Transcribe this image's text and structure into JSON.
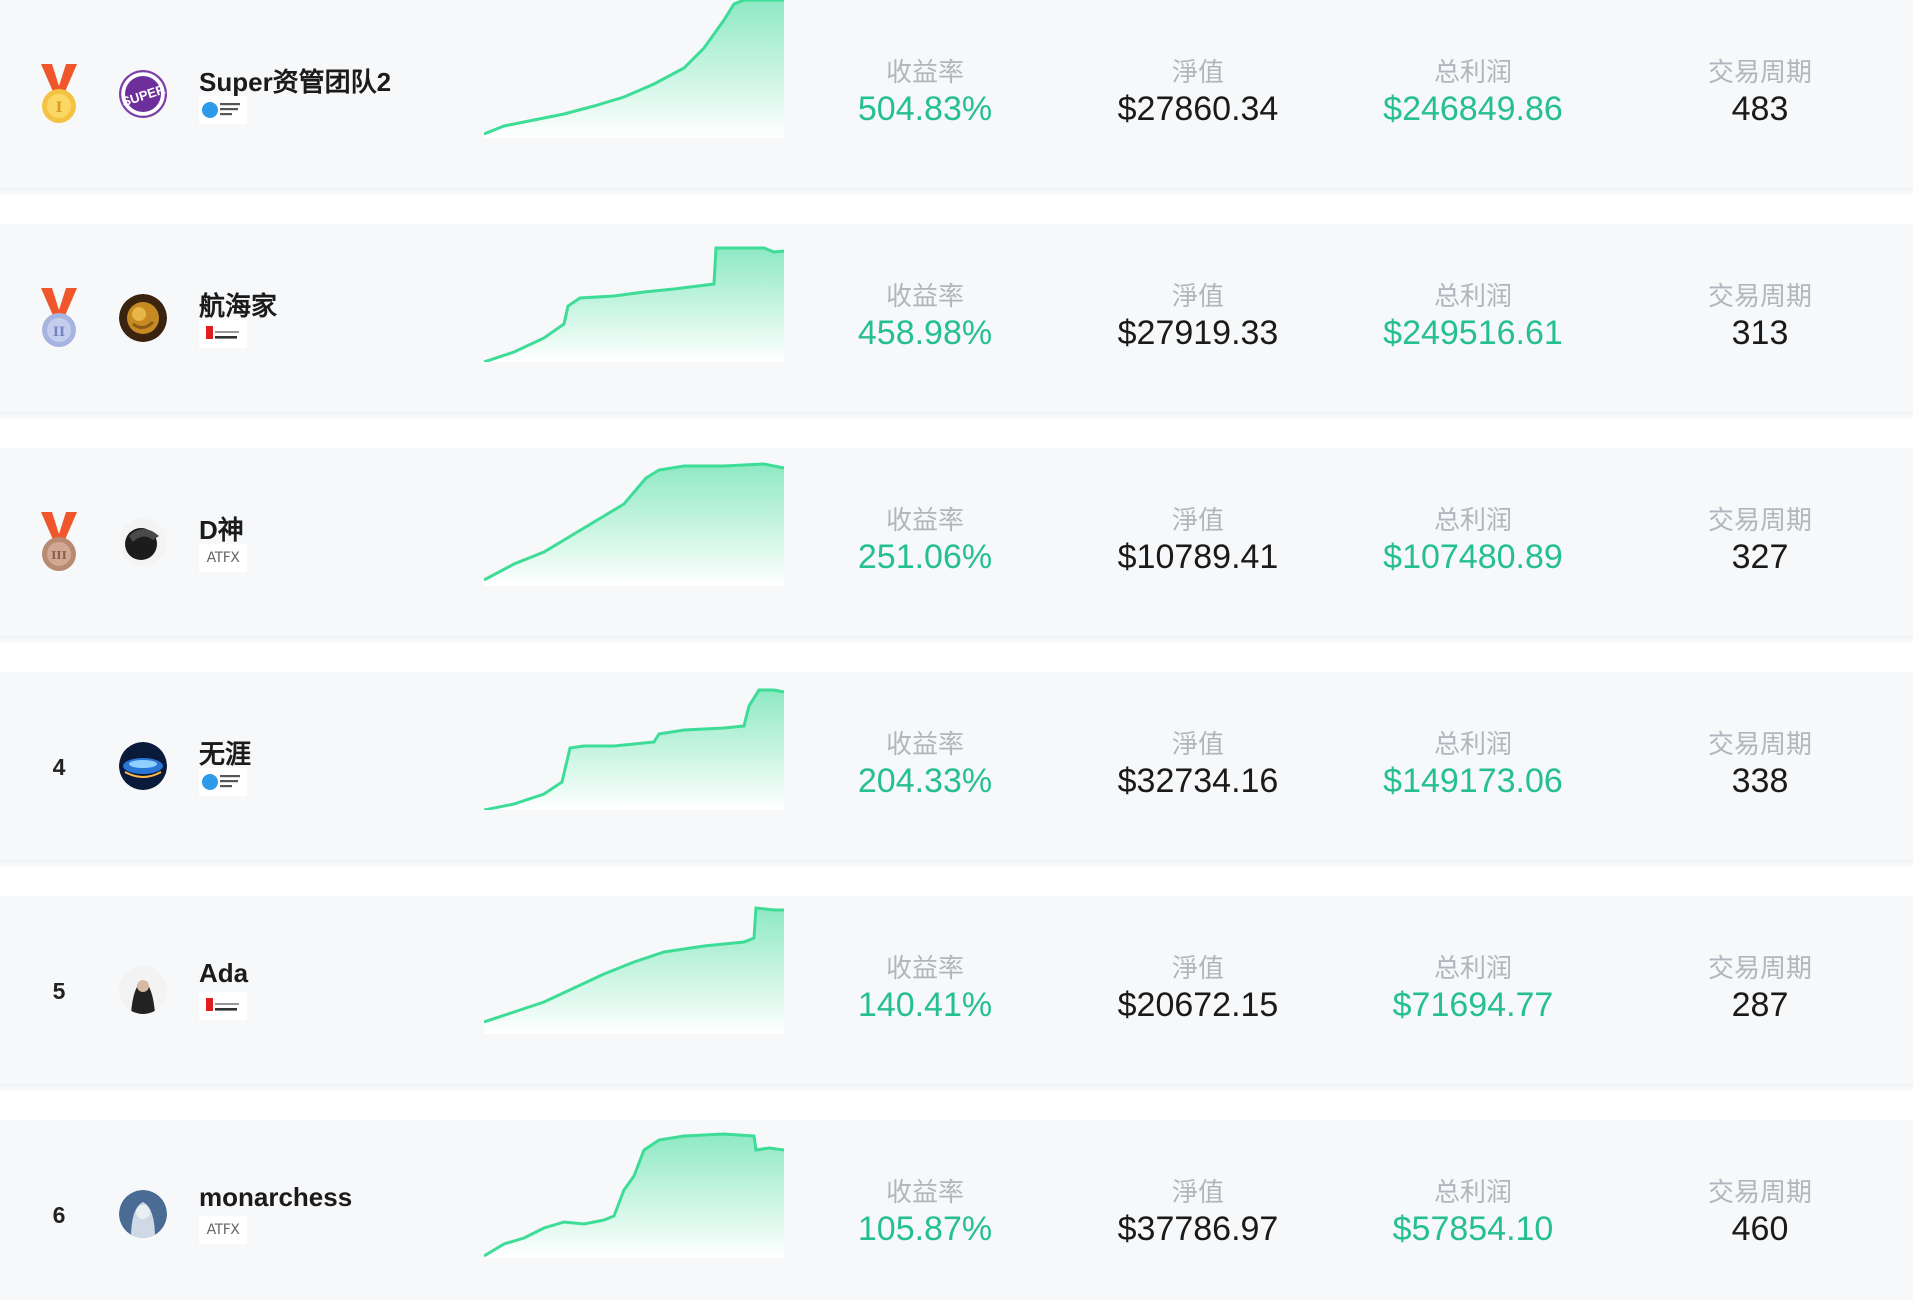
{
  "labels": {
    "return_rate": "收益率",
    "net_value": "淨值",
    "total_profit": "总利润",
    "trade_period": "交易周期"
  },
  "colors": {
    "accent_green": "#26c08f",
    "line_green": "#3ddc97",
    "gold": "#f5c342",
    "silver": "#a7b3e0",
    "bronze": "#b98a72",
    "ribbon": "#f0562c"
  },
  "traders": [
    {
      "rank": "1",
      "medal": "gold-medal-icon",
      "medal_numeral": "I",
      "name": "Super资管团队2",
      "broker": "Global Markets Index",
      "broker_text": "",
      "return_rate": "504.83%",
      "net_value": "$27860.34",
      "total_profit": "$246849.86",
      "trade_period": "483"
    },
    {
      "rank": "2",
      "medal": "silver-medal-icon",
      "medal_numeral": "II",
      "name": "航海家",
      "broker": "Doo Prime",
      "broker_text": "",
      "return_rate": "458.98%",
      "net_value": "$27919.33",
      "total_profit": "$249516.61",
      "trade_period": "313"
    },
    {
      "rank": "3",
      "medal": "bronze-medal-icon",
      "medal_numeral": "III",
      "name": "D神",
      "broker": "ATFX",
      "broker_text": "ATFX",
      "return_rate": "251.06%",
      "net_value": "$10789.41",
      "total_profit": "$107480.89",
      "trade_period": "327"
    },
    {
      "rank": "4",
      "medal": "",
      "medal_numeral": "",
      "name": "无涯",
      "broker": "Global Markets Index",
      "broker_text": "",
      "return_rate": "204.33%",
      "net_value": "$32734.16",
      "total_profit": "$149173.06",
      "trade_period": "338"
    },
    {
      "rank": "5",
      "medal": "",
      "medal_numeral": "",
      "name": "Ada",
      "broker": "Doo Prime",
      "broker_text": "",
      "return_rate": "140.41%",
      "net_value": "$20672.15",
      "total_profit": "$71694.77",
      "trade_period": "287"
    },
    {
      "rank": "6",
      "medal": "",
      "medal_numeral": "",
      "name": "monarchess",
      "broker": "ATFX",
      "broker_text": "ATFX",
      "return_rate": "105.87%",
      "net_value": "$37786.97",
      "total_profit": "$57854.10",
      "trade_period": "460"
    }
  ]
}
